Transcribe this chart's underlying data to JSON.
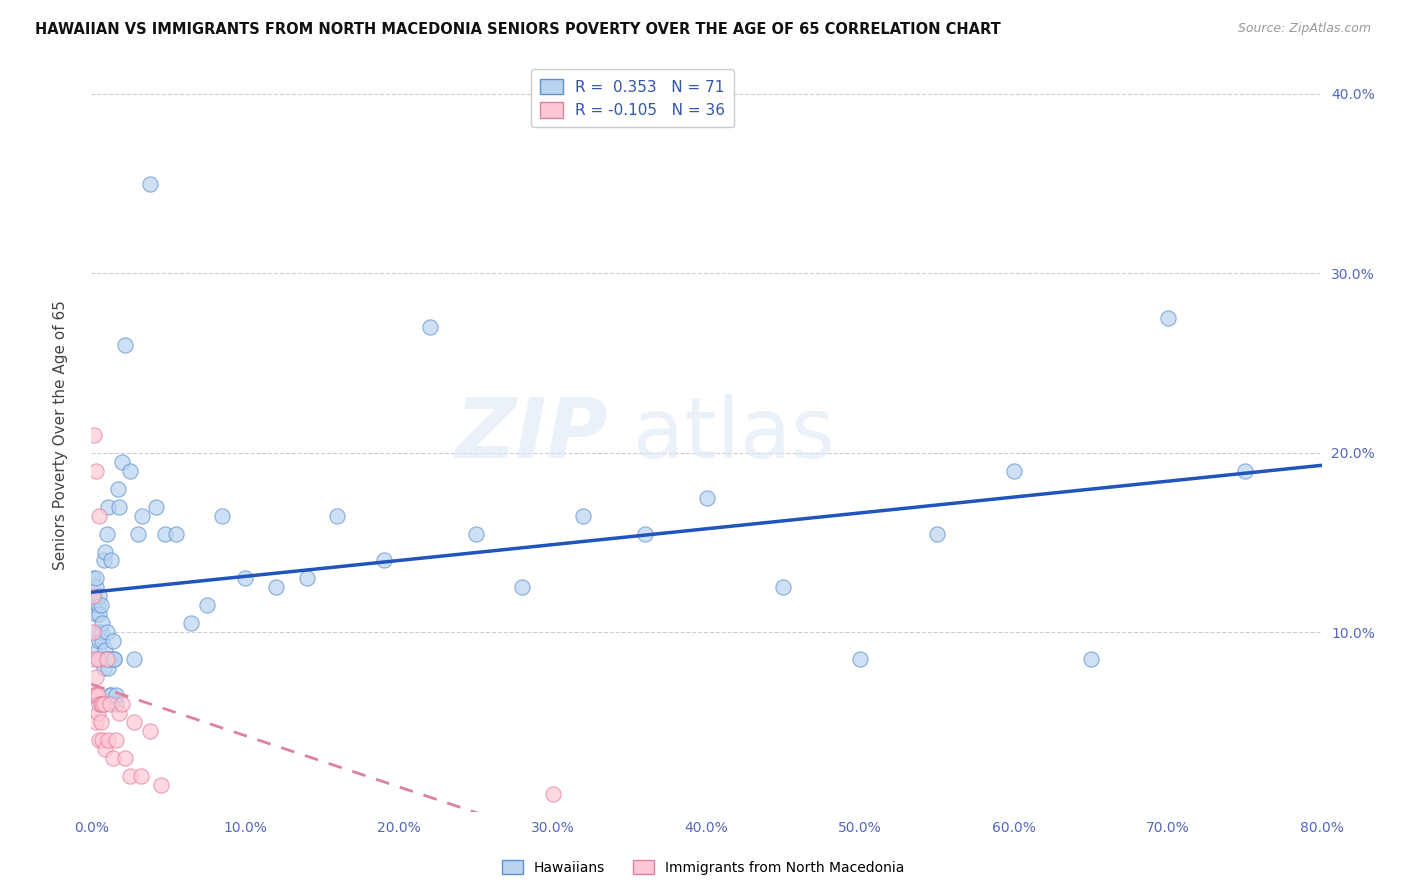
{
  "title": "HAWAIIAN VS IMMIGRANTS FROM NORTH MACEDONIA SENIORS POVERTY OVER THE AGE OF 65 CORRELATION CHART",
  "source": "Source: ZipAtlas.com",
  "ylabel": "Seniors Poverty Over the Age of 65",
  "xlim": [
    0.0,
    0.8
  ],
  "ylim": [
    0.0,
    0.42
  ],
  "xticks": [
    0.0,
    0.1,
    0.2,
    0.3,
    0.4,
    0.5,
    0.6,
    0.7,
    0.8
  ],
  "yticks": [
    0.0,
    0.1,
    0.2,
    0.3,
    0.4
  ],
  "xticklabels": [
    "0.0%",
    "10.0%",
    "20.0%",
    "30.0%",
    "40.0%",
    "50.0%",
    "60.0%",
    "70.0%",
    "80.0%"
  ],
  "yticklabels_right": [
    "",
    "10.0%",
    "20.0%",
    "30.0%",
    "40.0%"
  ],
  "hawaiian_R": 0.353,
  "hawaiian_N": 71,
  "macedonia_R": -0.105,
  "macedonia_N": 36,
  "hawaiian_color": "#b8d4f0",
  "hawaiian_edge_color": "#6090d0",
  "hawaiian_line_color": "#2255bb",
  "macedonia_color": "#ffc8d4",
  "macedonia_edge_color": "#e080a0",
  "macedonia_line_color": "#cc5577",
  "watermark_zip": "ZIP",
  "watermark_atlas": "atlas",
  "hawaiian_x": [
    0.001,
    0.002,
    0.002,
    0.003,
    0.003,
    0.003,
    0.004,
    0.004,
    0.004,
    0.005,
    0.005,
    0.005,
    0.005,
    0.006,
    0.006,
    0.006,
    0.007,
    0.007,
    0.007,
    0.008,
    0.008,
    0.009,
    0.009,
    0.009,
    0.01,
    0.01,
    0.01,
    0.011,
    0.011,
    0.012,
    0.012,
    0.013,
    0.013,
    0.014,
    0.015,
    0.015,
    0.016,
    0.016,
    0.017,
    0.018,
    0.02,
    0.022,
    0.025,
    0.028,
    0.03,
    0.033,
    0.038,
    0.042,
    0.048,
    0.055,
    0.065,
    0.075,
    0.085,
    0.1,
    0.12,
    0.14,
    0.16,
    0.19,
    0.22,
    0.25,
    0.28,
    0.32,
    0.36,
    0.4,
    0.45,
    0.5,
    0.55,
    0.6,
    0.65,
    0.7,
    0.75
  ],
  "hawaiian_y": [
    0.13,
    0.115,
    0.12,
    0.11,
    0.125,
    0.13,
    0.09,
    0.1,
    0.115,
    0.085,
    0.095,
    0.11,
    0.12,
    0.085,
    0.1,
    0.115,
    0.085,
    0.095,
    0.105,
    0.08,
    0.14,
    0.085,
    0.09,
    0.145,
    0.085,
    0.1,
    0.155,
    0.08,
    0.17,
    0.065,
    0.085,
    0.065,
    0.14,
    0.095,
    0.085,
    0.085,
    0.06,
    0.065,
    0.18,
    0.17,
    0.195,
    0.26,
    0.19,
    0.085,
    0.155,
    0.165,
    0.35,
    0.17,
    0.155,
    0.155,
    0.105,
    0.115,
    0.165,
    0.13,
    0.125,
    0.13,
    0.165,
    0.14,
    0.27,
    0.155,
    0.125,
    0.165,
    0.155,
    0.175,
    0.125,
    0.085,
    0.155,
    0.19,
    0.085,
    0.275,
    0.19
  ],
  "macedonia_x": [
    0.001,
    0.001,
    0.001,
    0.002,
    0.002,
    0.002,
    0.003,
    0.003,
    0.003,
    0.003,
    0.004,
    0.004,
    0.004,
    0.005,
    0.005,
    0.005,
    0.006,
    0.006,
    0.007,
    0.007,
    0.008,
    0.009,
    0.01,
    0.011,
    0.012,
    0.014,
    0.016,
    0.018,
    0.02,
    0.022,
    0.025,
    0.028,
    0.032,
    0.038,
    0.045,
    0.3
  ],
  "macedonia_y": [
    0.12,
    0.1,
    0.065,
    0.21,
    0.085,
    0.065,
    0.19,
    0.075,
    0.065,
    0.05,
    0.085,
    0.065,
    0.055,
    0.165,
    0.06,
    0.04,
    0.06,
    0.05,
    0.06,
    0.04,
    0.06,
    0.035,
    0.085,
    0.04,
    0.06,
    0.03,
    0.04,
    0.055,
    0.06,
    0.03,
    0.02,
    0.05,
    0.02,
    0.045,
    0.015,
    0.01
  ]
}
